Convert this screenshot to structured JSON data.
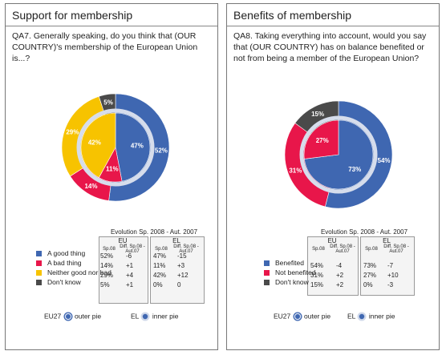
{
  "panels": [
    {
      "title": "Support for membership",
      "question": "QA7. Generally speaking, do you think that (OUR COUNTRY)'s membership of the European Union is...?",
      "evolution_title": "Evolution Sp. 2008 - Aut. 2007",
      "col_eu": "EU",
      "col_el": "EL",
      "sub_value": "Sp.08",
      "sub_diff": "Diff. Sp.08 - Aut.07",
      "rows": [
        {
          "label": "A good thing",
          "color": "#3f67b1",
          "eu": "52%",
          "eu_diff": "-6",
          "el": "47%",
          "el_diff": "-15"
        },
        {
          "label": "A bad thing",
          "color": "#e8164a",
          "eu": "14%",
          "eu_diff": "+1",
          "el": "11%",
          "el_diff": "+3"
        },
        {
          "label": "Neither good nor bad",
          "color": "#f7c300",
          "eu": "29%",
          "eu_diff": "+4",
          "el": "42%",
          "el_diff": "+12"
        },
        {
          "label": "Don't know",
          "color": "#4a4a4a",
          "eu": "5%",
          "eu_diff": "+1",
          "el": "0%",
          "el_diff": "0"
        }
      ],
      "footer_outer": "EU27",
      "footer_outer_label": "outer pie",
      "footer_inner": "EL",
      "footer_inner_label": "inner pie"
    },
    {
      "title": "Benefits of membership",
      "question": "QA8. Taking everything into account, would you say that (OUR COUNTRY) has on balance benefited or not from being a member of the European Union?",
      "evolution_title": "Evolution Sp. 2008 - Aut. 2007",
      "col_eu": "EU",
      "col_el": "EL",
      "sub_value": "Sp.08",
      "sub_diff": "Diff. Sp.08 - Aut.07",
      "rows": [
        {
          "label": "Benefited",
          "color": "#3f67b1",
          "eu": "54%",
          "eu_diff": "-4",
          "el": "73%",
          "el_diff": "-7"
        },
        {
          "label": "Not benefited",
          "color": "#e8164a",
          "eu": "31%",
          "eu_diff": "+2",
          "el": "27%",
          "el_diff": "+10"
        },
        {
          "label": "Don't know",
          "color": "#4a4a4a",
          "eu": "15%",
          "eu_diff": "+2",
          "el": "0%",
          "el_diff": "-3"
        }
      ],
      "footer_outer": "EU27",
      "footer_outer_label": "outer pie",
      "footer_inner": "EL",
      "footer_inner_label": "inner pie"
    }
  ],
  "chart_data": [
    {
      "type": "pie",
      "title": "Support for membership",
      "categories": [
        "A good thing",
        "A bad thing",
        "Neither good nor bad",
        "Don't know"
      ],
      "colors": [
        "#3f67b1",
        "#e8164a",
        "#f7c300",
        "#4a4a4a"
      ],
      "series": [
        {
          "name": "EU27",
          "ring": "outer",
          "values": [
            52,
            14,
            29,
            5
          ],
          "labels": [
            "52%",
            "14%",
            "29%",
            "5%"
          ]
        },
        {
          "name": "EL",
          "ring": "inner",
          "values": [
            47,
            11,
            42,
            0
          ],
          "labels": [
            "47%",
            "11%",
            "42%",
            ""
          ]
        }
      ]
    },
    {
      "type": "pie",
      "title": "Benefits of membership",
      "categories": [
        "Benefited",
        "Not benefited",
        "Don't know"
      ],
      "colors": [
        "#3f67b1",
        "#e8164a",
        "#4a4a4a"
      ],
      "series": [
        {
          "name": "EU27",
          "ring": "outer",
          "values": [
            54,
            31,
            15
          ],
          "labels": [
            "54%",
            "31%",
            "15%"
          ]
        },
        {
          "name": "EL",
          "ring": "inner",
          "values": [
            73,
            27,
            0
          ],
          "labels": [
            "73%",
            "27%",
            ""
          ]
        }
      ]
    }
  ]
}
